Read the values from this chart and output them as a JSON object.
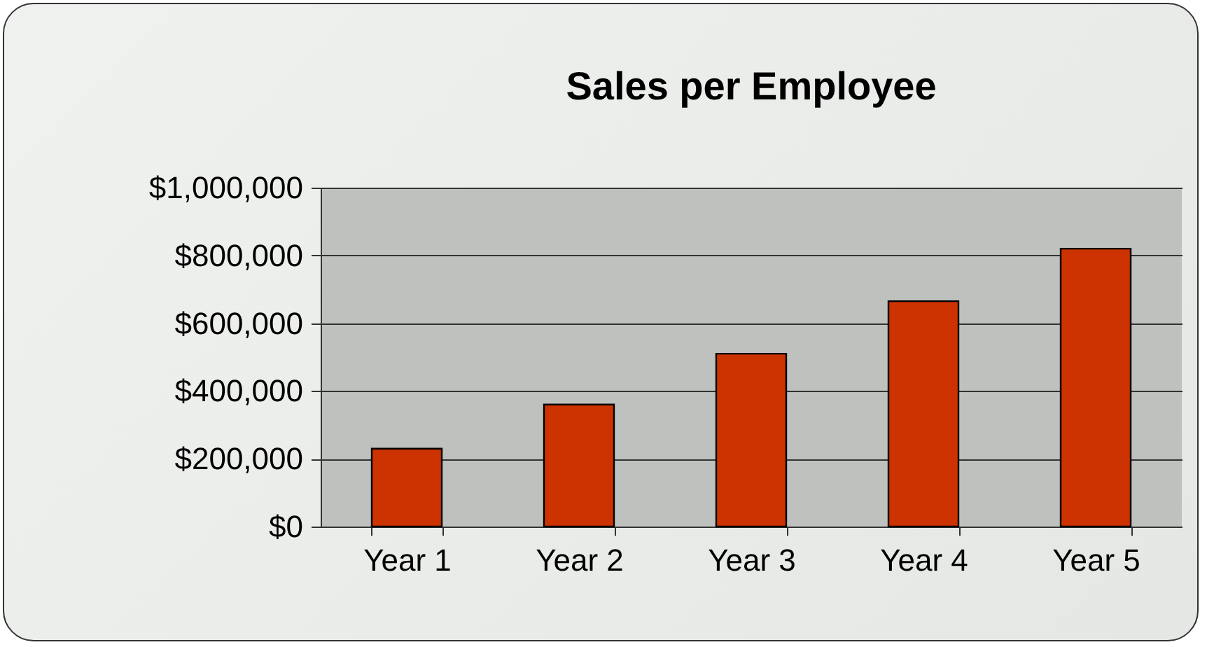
{
  "chart_data": {
    "type": "bar",
    "title": "Sales per Employee",
    "categories": [
      "Year 1",
      "Year 2",
      "Year 3",
      "Year 4",
      "Year 5"
    ],
    "values": [
      230000,
      360000,
      510000,
      665000,
      820000
    ],
    "color": "#cc3300",
    "ylim": [
      0,
      1000000
    ],
    "yticks": [
      {
        "value": 0,
        "label": "$0"
      },
      {
        "value": 200000,
        "label": "$200,000"
      },
      {
        "value": 400000,
        "label": "$400,000"
      },
      {
        "value": 600000,
        "label": "$600,000"
      },
      {
        "value": 800000,
        "label": "$800,000"
      },
      {
        "value": 1000000,
        "label": "$1,000,000"
      }
    ],
    "grid": "y"
  }
}
